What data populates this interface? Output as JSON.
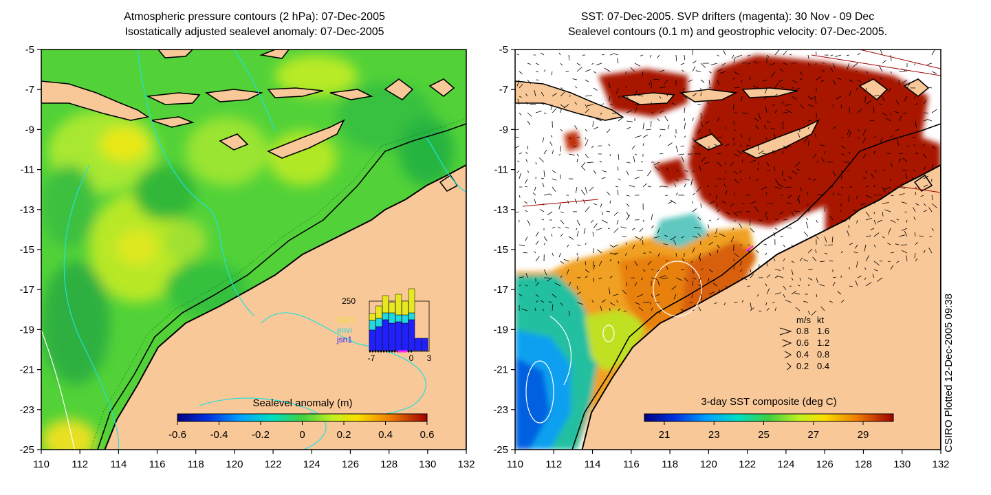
{
  "left_panel": {
    "title_line1": "Atmospheric pressure contours (2 hPa): 07-Dec-2005",
    "title_line2": "Isostatically adjusted sealevel anomaly: 07-Dec-2005",
    "colorbar_label": "Sealevel anomaly (m)",
    "colorbar_ticks": [
      "-0.6",
      "-0.4",
      "-0.2",
      "0",
      "0.2",
      "0.4",
      "0.6"
    ],
    "inset": {
      "ymax_label": "250",
      "xticks": [
        "-7",
        "0",
        "3"
      ],
      "satellites": [
        {
          "name": "GFO",
          "color": "#e8e820"
        },
        {
          "name": "envi",
          "color": "#20d8e0"
        },
        {
          "name": "jsn1",
          "color": "#2020ff"
        }
      ]
    }
  },
  "right_panel": {
    "title_line1": "SST: 07-Dec-2005. SVP drifters (magenta): 30 Nov - 09 Dec",
    "title_line2": "Sealevel contours (0.1 m) and geostrophic velocity: 07-Dec-2005.",
    "colorbar_label": "3-day SST composite (deg C)",
    "colorbar_ticks": [
      "21",
      "23",
      "25",
      "27",
      "29"
    ],
    "velocity_legend": {
      "header_ms": "m/s",
      "header_kt": "kt",
      "rows": [
        {
          "ms": "0.8",
          "kt": "1.6"
        },
        {
          "ms": "0.6",
          "kt": "1.2"
        },
        {
          "ms": "0.4",
          "kt": "0.8"
        },
        {
          "ms": "0.2",
          "kt": "0.4"
        }
      ]
    }
  },
  "axes": {
    "longitude_ticks": [
      "110",
      "112",
      "114",
      "116",
      "118",
      "120",
      "122",
      "124",
      "126",
      "128",
      "130",
      "132"
    ],
    "latitude_ticks": [
      "-5",
      "-7",
      "-9",
      "-11",
      "-13",
      "-15",
      "-17",
      "-19",
      "-21",
      "-23",
      "-25"
    ]
  },
  "credit": "CSIRO Plotted 12-Dec-2005 09:38",
  "colors": {
    "land": "#f9c898",
    "ocean_green": "#3ecf3e",
    "sst_red": "#a81400",
    "sst_orange": "#e87a10"
  }
}
